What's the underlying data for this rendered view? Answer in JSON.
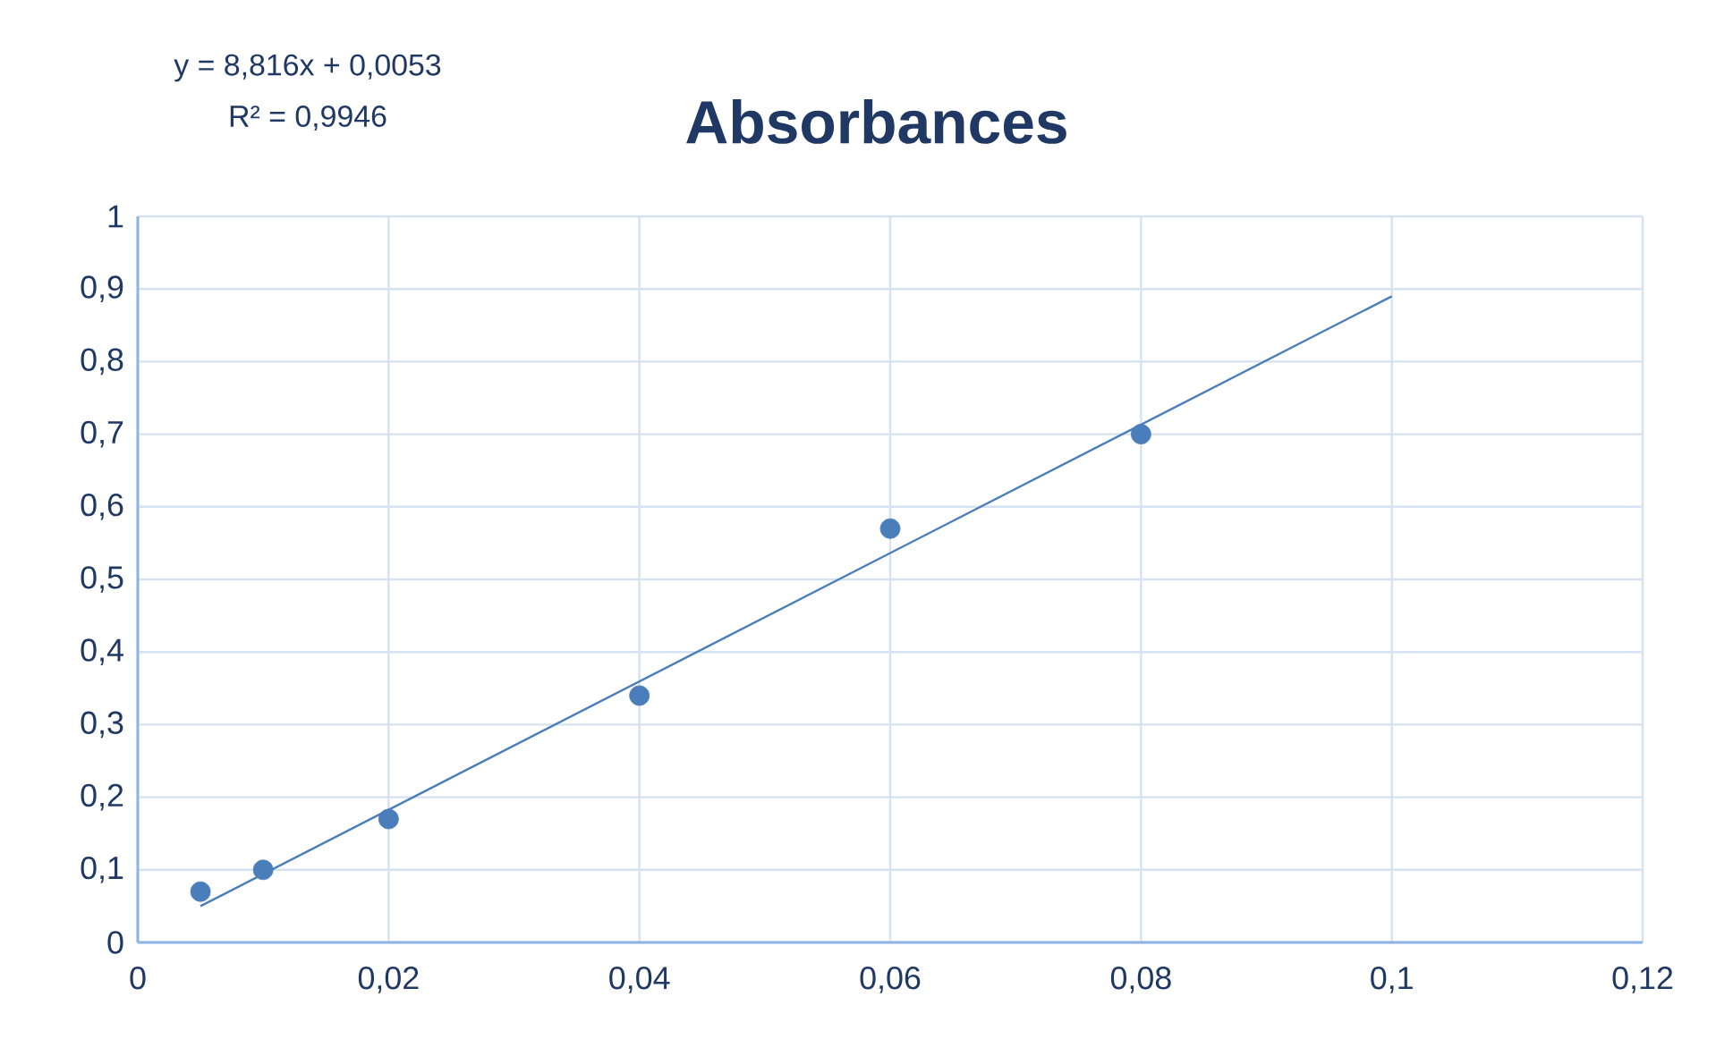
{
  "chart_data": {
    "type": "scatter",
    "title": "Absorbances",
    "annotations": [
      "y = 8,816x + 0,0053",
      "R² = 0,9946"
    ],
    "xlim": [
      0,
      0.12
    ],
    "xticks": [
      0,
      {
        "value": 0.02,
        "label": "0,02"
      },
      {
        "value": 0.04,
        "label": "0,04"
      },
      {
        "value": 0.06,
        "label": "0,06"
      },
      {
        "value": 0.08,
        "label": "0,08"
      },
      {
        "value": 0.1,
        "label": "0,1"
      },
      {
        "value": 0.12,
        "label": "0,12"
      }
    ],
    "ylim": [
      0,
      1
    ],
    "yticks": [
      0,
      {
        "value": 0.1,
        "label": "0,1"
      },
      {
        "value": 0.2,
        "label": "0,2"
      },
      {
        "value": 0.3,
        "label": "0,3"
      },
      {
        "value": 0.4,
        "label": "0,4"
      },
      {
        "value": 0.5,
        "label": "0,5"
      },
      {
        "value": 0.6,
        "label": "0,6"
      },
      {
        "value": 0.7,
        "label": "0,7"
      },
      {
        "value": 0.8,
        "label": "0,8"
      },
      {
        "value": 0.9,
        "label": "0,9"
      },
      1
    ],
    "grid": true,
    "legend": false,
    "marker": "circle",
    "series": [
      {
        "color": "#4a7ebb",
        "x": [
          0.005,
          0.01,
          0.02,
          0.04,
          0.06,
          0.08
        ],
        "values": [
          0.07,
          0.1,
          0.17,
          0.34,
          0.57,
          0.7
        ]
      },
      {
        "type": "line",
        "color": "#4a7ebb",
        "x": [
          0.005,
          0.1
        ],
        "values": [
          0.05,
          0.89
        ],
        "marker": "none",
        "line_style": "solid"
      }
    ]
  }
}
